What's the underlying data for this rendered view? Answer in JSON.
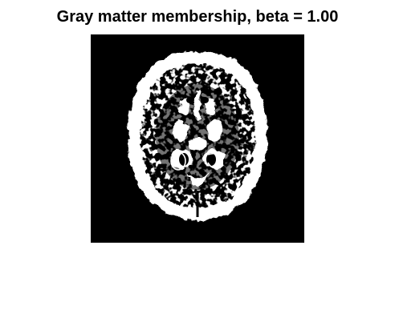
{
  "figure": {
    "title": "Gray matter membership, beta = 1.00"
  },
  "image": {
    "background_color": "#000000",
    "foreground_color": "#ffffff",
    "content": "binary-brain-slice-gray-matter-mask"
  }
}
